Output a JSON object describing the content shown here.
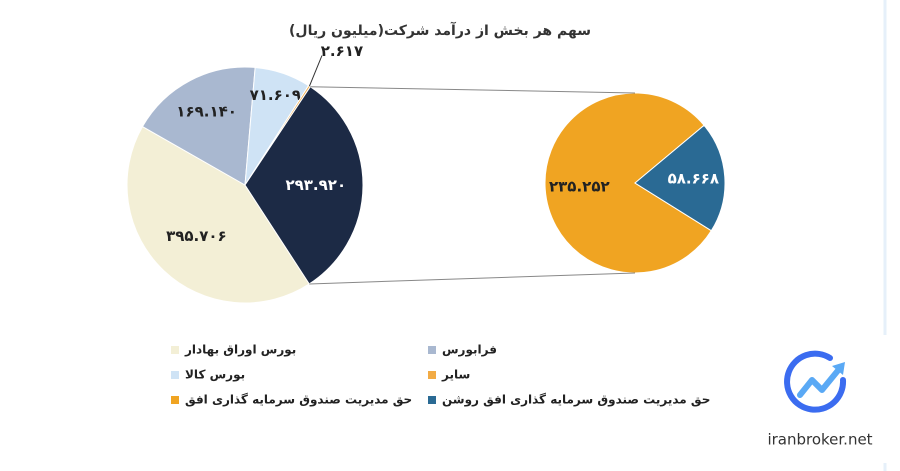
{
  "chart_data": {
    "type": "pie-of-pie",
    "title": "سهم هر بخش از درآمد شرکت(میلیون ریال)",
    "main": [
      {
        "name": "بورس اوراق بهادار",
        "value": 395.706,
        "label": "۳۹۵.۷۰۶",
        "color": "#f3efd6"
      },
      {
        "name": "فرابورس",
        "value": 169.14,
        "label": "۱۶۹.۱۴۰",
        "color": "#a9b8d0"
      },
      {
        "name": "بورس کالا",
        "value": 71.609,
        "label": "۷۱.۶۰۹",
        "color": "#cfe3f5"
      },
      {
        "name": "سایر",
        "value": 2.617,
        "label": "۲.۶۱۷",
        "color": "#f2ab45"
      },
      {
        "value": 293.92,
        "label": "۲۹۳.۹۲۰",
        "color": "#1c2a45"
      }
    ],
    "sub": [
      {
        "name": "حق مدیریت صندوق سرمایه گذاری افق",
        "value": 235.252,
        "label": "۲۳۵.۲۵۲",
        "color": "#f0a422"
      },
      {
        "name": "حق مدیریت صندوق سرمایه گذاری افق روشن",
        "value": 58.668,
        "label": "۵۸.۶۶۸",
        "color": "#2a6a94"
      }
    ]
  },
  "watermark": "iranbroker.net"
}
